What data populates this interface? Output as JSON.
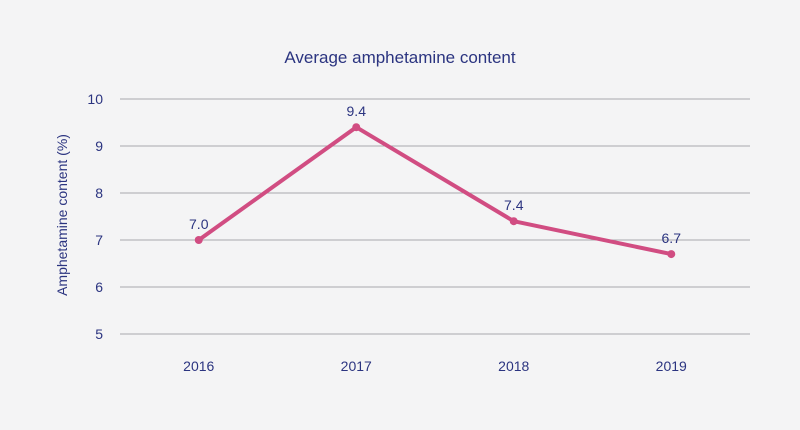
{
  "chart_data": {
    "type": "line",
    "title": "Average amphetamine content",
    "xlabel": "",
    "ylabel": "Amphetamine content (%)",
    "categories": [
      "2016",
      "2017",
      "2018",
      "2019"
    ],
    "series": [
      {
        "values": [
          7.0,
          9.4,
          7.4,
          6.7
        ],
        "labels": [
          "7.0",
          "9.4",
          "7.4",
          "6.7"
        ]
      }
    ],
    "ylim": [
      5,
      10
    ],
    "yticks": [
      5,
      6,
      7,
      8,
      9,
      10
    ],
    "grid": true,
    "colors": {
      "line": "#d14d82",
      "grid": "#a9a9ad",
      "text": "#2b3480",
      "background": "#f4f4f5"
    }
  }
}
